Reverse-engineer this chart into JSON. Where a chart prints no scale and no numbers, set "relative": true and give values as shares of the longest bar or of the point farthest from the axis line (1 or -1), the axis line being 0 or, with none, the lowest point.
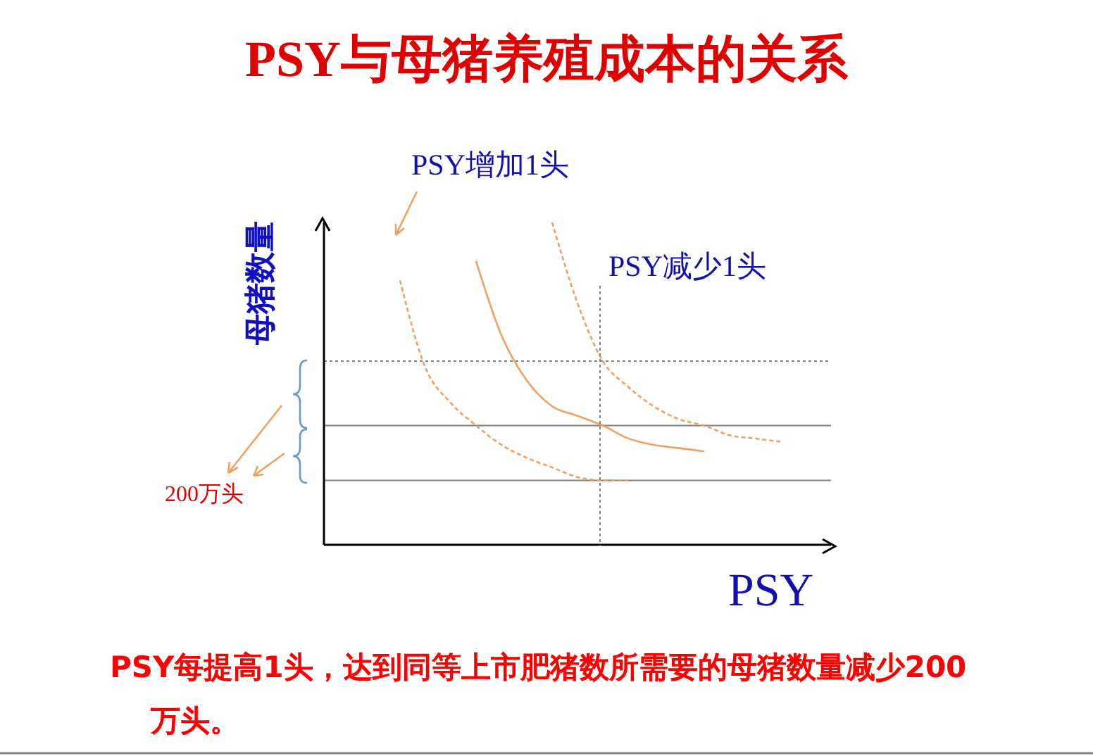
{
  "chart_data": {
    "type": "line",
    "title": "PSY与母猪养殖成本的关系",
    "xlabel": "PSY",
    "ylabel": "母猪数量",
    "relative": true,
    "grid": false,
    "legend": false,
    "marker": "none",
    "categories": [
      null,
      null,
      null,
      null,
      null,
      null,
      null,
      null,
      null,
      null,
      null,
      null,
      null,
      null,
      null,
      null,
      null,
      null,
      null,
      null
    ],
    "series": [
      {
        "color": "#f0a060",
        "line_style": "dashed",
        "values": [
          null,
          null,
          null,
          0.82,
          0.55,
          0.44,
          0.37,
          0.31,
          0.27,
          0.24,
          0.21,
          0.2,
          0.2,
          null,
          null,
          null,
          null,
          null,
          null,
          null
        ]
      },
      {
        "color": "#f0a060",
        "line_style": "solid",
        "values": [
          null,
          null,
          null,
          null,
          null,
          null,
          0.88,
          0.65,
          0.51,
          0.43,
          0.4,
          0.37,
          0.33,
          0.31,
          0.3,
          0.29,
          null,
          null,
          null,
          null
        ]
      },
      {
        "color": "#f0a060",
        "line_style": "dashed",
        "values": [
          null,
          null,
          null,
          null,
          null,
          null,
          null,
          null,
          null,
          1,
          0.75,
          0.57,
          0.49,
          0.43,
          0.39,
          0.37,
          0.34,
          0.33,
          0.32,
          null
        ]
      }
    ],
    "ref_lines": [
      {
        "axis": "y",
        "value": 0.57,
        "color": "#808080",
        "line_style": "dotted"
      },
      {
        "axis": "y",
        "value": 0.37,
        "color": "#808080",
        "line_style": "solid"
      },
      {
        "axis": "y",
        "value": 0.2,
        "color": "#808080",
        "line_style": "solid"
      }
    ],
    "annotations": [
      "PSY增加1头",
      "PSY减少1头",
      "200万头",
      "PSY每提高1头，达到同等上市肥猪数所需要的母猪数量减少200万头。"
    ]
  }
}
